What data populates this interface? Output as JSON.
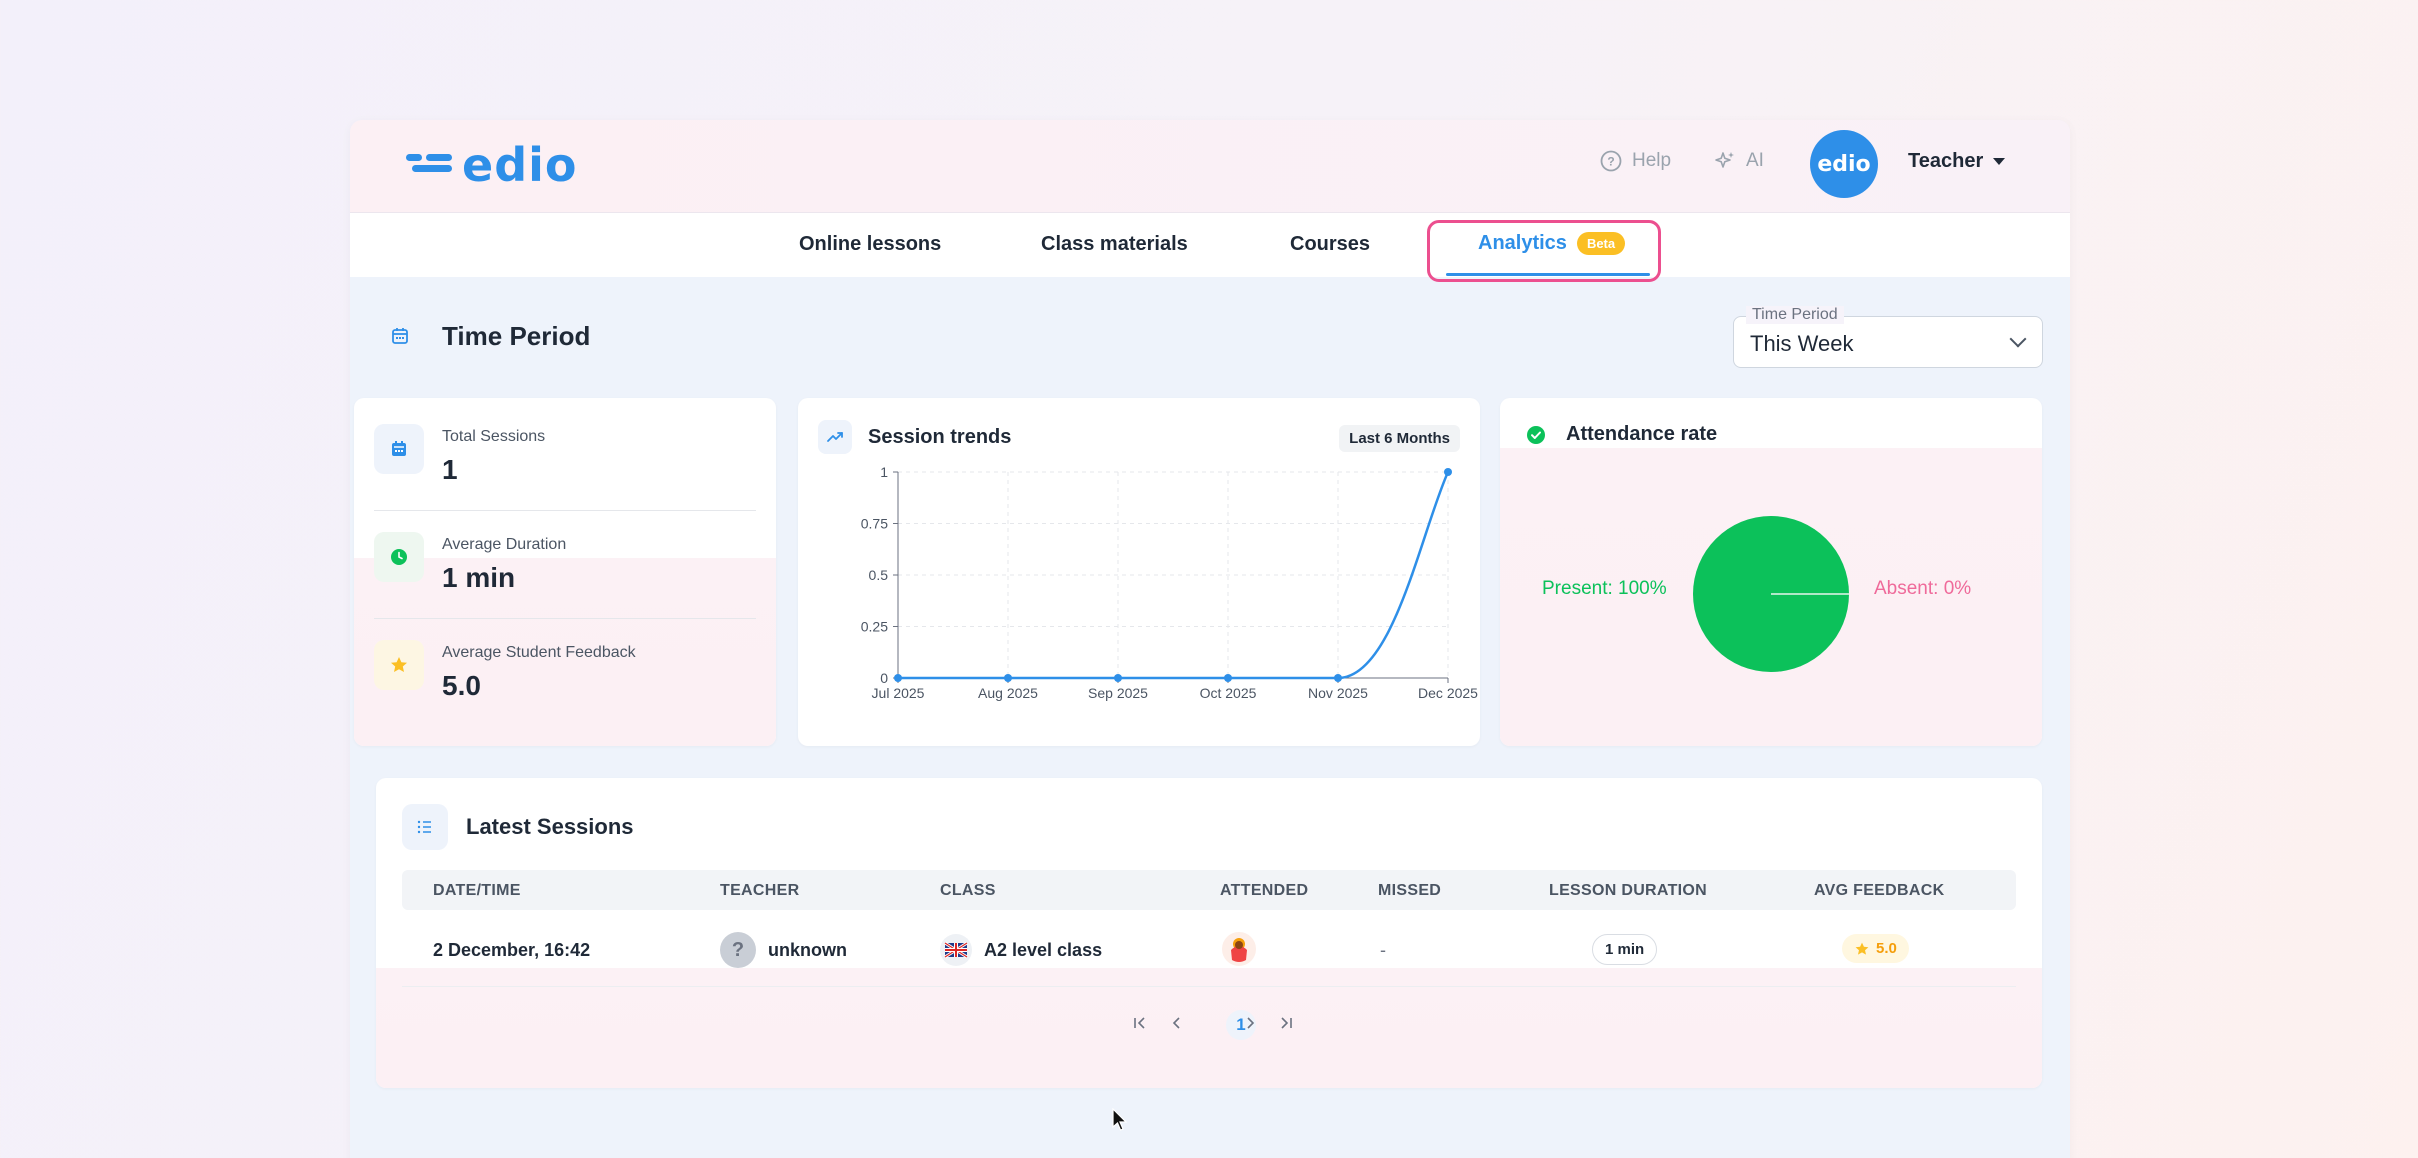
{
  "header": {
    "logo_text": "edio",
    "help_label": "Help",
    "ai_label": "AI",
    "avatar_text": "edio",
    "role_label": "Teacher"
  },
  "nav": {
    "items": [
      {
        "label": "Online lessons"
      },
      {
        "label": "Class materials"
      },
      {
        "label": "Courses"
      },
      {
        "label": "Analytics",
        "badge": "Beta",
        "active": true
      }
    ]
  },
  "section": {
    "title": "Time Period"
  },
  "period_select": {
    "legend": "Time Period",
    "value": "This Week"
  },
  "stats": {
    "total_sessions_label": "Total Sessions",
    "total_sessions_value": "1",
    "avg_duration_label": "Average Duration",
    "avg_duration_value": "1 min",
    "avg_feedback_label": "Average Student Feedback",
    "avg_feedback_value": "5.0"
  },
  "trend": {
    "title": "Session trends",
    "range_badge": "Last 6 Months"
  },
  "attendance": {
    "title": "Attendance rate",
    "present_label": "Present: 100%",
    "absent_label": "Absent: 0%"
  },
  "chart_data": [
    {
      "type": "line",
      "title": "Session trends",
      "x": [
        "Jul 2025",
        "Aug 2025",
        "Sep 2025",
        "Oct 2025",
        "Nov 2025",
        "Dec 2025"
      ],
      "series": [
        {
          "values": [
            0,
            0,
            0,
            0,
            0,
            1
          ]
        }
      ],
      "ylim": [
        0,
        1
      ],
      "yticks": [
        "0",
        "0.25",
        "0.5",
        "0.75",
        "1"
      ],
      "grid": true,
      "color": "#2e8fe8"
    },
    {
      "type": "pie",
      "title": "Attendance rate",
      "categories": [
        "Present",
        "Absent"
      ],
      "values": [
        100,
        0
      ],
      "colors": [
        "#0cc15a",
        "#ef6a9a"
      ]
    }
  ],
  "sessions": {
    "title": "Latest Sessions",
    "columns": [
      "DATE/TIME",
      "TEACHER",
      "CLASS",
      "ATTENDED",
      "MISSED",
      "LESSON DURATION",
      "AVG FEEDBACK"
    ],
    "rows": [
      {
        "datetime": "2 December, 16:42",
        "teacher_icon": "?",
        "teacher": "unknown",
        "class": "A2 level class",
        "missed": "-",
        "duration": "1 min",
        "feedback": "5.0"
      }
    ]
  },
  "pagination": {
    "current_page": "1"
  },
  "colors": {
    "accent": "#2e8fe8",
    "highlight": "#ec4f8f",
    "beta": "#fbbf24",
    "present": "#0cc15a",
    "absent": "#ef6a9a"
  }
}
